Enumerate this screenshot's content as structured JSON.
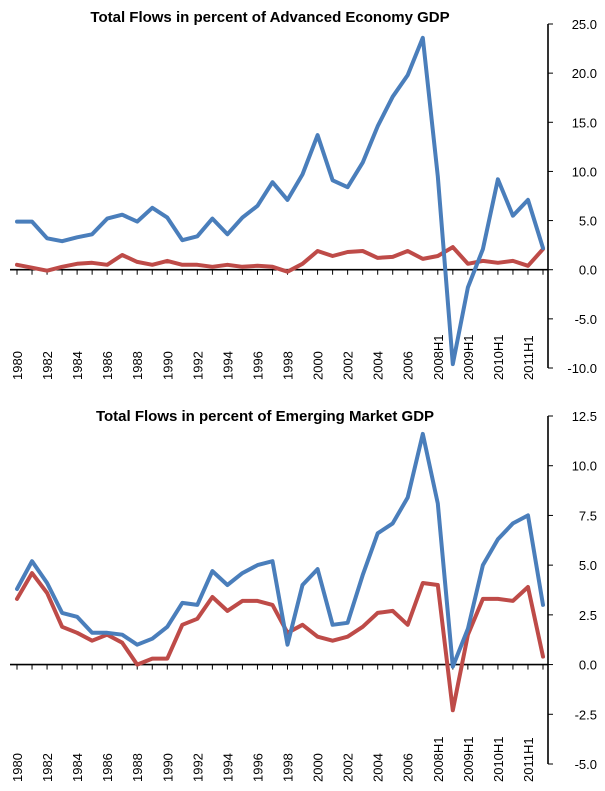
{
  "colors": {
    "series_blue": "#4a7ebb",
    "series_red": "#be4b48"
  },
  "chart_data": [
    {
      "type": "line",
      "title": "Total Flows in percent of Advanced Economy GDP",
      "x_labels": [
        "1980",
        "1982",
        "1984",
        "1986",
        "1988",
        "1990",
        "1992",
        "1994",
        "1996",
        "1998",
        "2000",
        "2002",
        "2004",
        "2006",
        "2008H1",
        "2009H1",
        "2010H1",
        "2011H1"
      ],
      "x": [
        "1980",
        "1981",
        "1982",
        "1983",
        "1984",
        "1985",
        "1986",
        "1987",
        "1988",
        "1989",
        "1990",
        "1991",
        "1992",
        "1993",
        "1994",
        "1995",
        "1996",
        "1997",
        "1998",
        "1999",
        "2000",
        "2001",
        "2002",
        "2003",
        "2004",
        "2005",
        "2006",
        "2007",
        "2008H1",
        "2008H2",
        "2009H1",
        "2009H2",
        "2010H1",
        "2010H2",
        "2011H1",
        "2011H2"
      ],
      "y_ticks": [
        "25.0",
        "20.0",
        "15.0",
        "10.0",
        "5.0",
        "0.0",
        "-5.0",
        "-10.0"
      ],
      "ylim": [
        -10,
        25
      ],
      "y_axis_side": "right",
      "series": [
        {
          "color": "#4a7ebb",
          "values": [
            4.9,
            4.9,
            3.2,
            2.9,
            3.3,
            3.6,
            5.2,
            5.6,
            4.9,
            6.3,
            5.3,
            3.0,
            3.4,
            5.2,
            3.6,
            5.3,
            6.5,
            8.9,
            7.1,
            9.7,
            13.7,
            9.1,
            8.4,
            10.9,
            14.6,
            17.6,
            19.8,
            23.6,
            9.5,
            -9.6,
            -1.8,
            2.1,
            9.2,
            5.5,
            7.1,
            2.2
          ]
        },
        {
          "color": "#be4b48",
          "values": [
            0.5,
            0.2,
            -0.1,
            0.3,
            0.6,
            0.7,
            0.5,
            1.5,
            0.8,
            0.5,
            0.9,
            0.5,
            0.5,
            0.3,
            0.5,
            0.3,
            0.4,
            0.3,
            -0.2,
            0.6,
            1.9,
            1.4,
            1.8,
            1.9,
            1.2,
            1.3,
            1.9,
            1.1,
            1.4,
            2.3,
            0.6,
            0.9,
            0.7,
            0.9,
            0.4,
            2.1
          ]
        }
      ]
    },
    {
      "type": "line",
      "title": "Total Flows in percent of Emerging Market GDP",
      "x_labels": [
        "1980",
        "1982",
        "1984",
        "1986",
        "1988",
        "1990",
        "1992",
        "1994",
        "1996",
        "1998",
        "2000",
        "2002",
        "2004",
        "2006",
        "2008H1",
        "2009H1",
        "2010H1",
        "2011H1"
      ],
      "x": [
        "1980",
        "1981",
        "1982",
        "1983",
        "1984",
        "1985",
        "1986",
        "1987",
        "1988",
        "1989",
        "1990",
        "1991",
        "1992",
        "1993",
        "1994",
        "1995",
        "1996",
        "1997",
        "1998",
        "1999",
        "2000",
        "2001",
        "2002",
        "2003",
        "2004",
        "2005",
        "2006",
        "2007",
        "2008H1",
        "2008H2",
        "2009H1",
        "2009H2",
        "2010H1",
        "2010H2",
        "2011H1",
        "2011H2"
      ],
      "y_ticks": [
        "12.5",
        "10.0",
        "7.5",
        "5.0",
        "2.5",
        "0.0",
        "-2.5",
        "-5.0"
      ],
      "ylim": [
        -5,
        12.5
      ],
      "y_axis_side": "right",
      "series": [
        {
          "color": "#4a7ebb",
          "values": [
            3.8,
            5.2,
            4.1,
            2.6,
            2.4,
            1.6,
            1.6,
            1.5,
            1.0,
            1.3,
            1.9,
            3.1,
            3.0,
            4.7,
            4.0,
            4.6,
            5.0,
            5.2,
            1.0,
            4.0,
            4.8,
            2.0,
            2.1,
            4.5,
            6.6,
            7.1,
            8.4,
            11.6,
            8.1,
            -0.1,
            1.8,
            5.0,
            6.3,
            7.1,
            7.5,
            3.0
          ]
        },
        {
          "color": "#be4b48",
          "values": [
            3.3,
            4.6,
            3.6,
            1.9,
            1.6,
            1.2,
            1.5,
            1.1,
            0.0,
            0.3,
            0.3,
            2.0,
            2.3,
            3.4,
            2.7,
            3.2,
            3.2,
            3.0,
            1.6,
            2.0,
            1.4,
            1.2,
            1.4,
            1.9,
            2.6,
            2.7,
            2.0,
            4.1,
            4.0,
            -2.3,
            1.5,
            3.3,
            3.3,
            3.2,
            3.9,
            0.4
          ]
        }
      ]
    }
  ]
}
